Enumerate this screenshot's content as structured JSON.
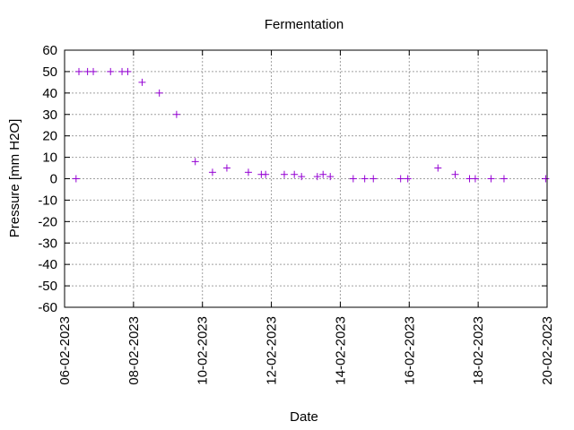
{
  "chart_data": {
    "type": "scatter",
    "title": "Fermentation",
    "xlabel": "Date",
    "ylabel": "Pressure [mm H2O]",
    "xlim": [
      "2023-02-06",
      "2023-02-20"
    ],
    "ylim": [
      -60,
      60
    ],
    "grid": true,
    "point_marker": "+",
    "point_color": "#9400d3",
    "x_ticks": [
      "06-02-2023",
      "08-02-2023",
      "10-02-2023",
      "12-02-2023",
      "14-02-2023",
      "16-02-2023",
      "18-02-2023",
      "20-02-2023"
    ],
    "y_ticks": [
      60,
      50,
      40,
      30,
      20,
      10,
      0,
      -10,
      -20,
      -30,
      -40,
      -50,
      -60
    ],
    "points": [
      {
        "x": "2023-02-06T08:00",
        "y": 0
      },
      {
        "x": "2023-02-06T10:00",
        "y": 50
      },
      {
        "x": "2023-02-06T16:00",
        "y": 50
      },
      {
        "x": "2023-02-06T20:00",
        "y": 50
      },
      {
        "x": "2023-02-07T08:00",
        "y": 50
      },
      {
        "x": "2023-02-07T16:00",
        "y": 50
      },
      {
        "x": "2023-02-07T20:00",
        "y": 50
      },
      {
        "x": "2023-02-08T06:00",
        "y": 45
      },
      {
        "x": "2023-02-08T18:00",
        "y": 40
      },
      {
        "x": "2023-02-09T06:00",
        "y": 30
      },
      {
        "x": "2023-02-09T19:00",
        "y": 8
      },
      {
        "x": "2023-02-10T07:00",
        "y": 3
      },
      {
        "x": "2023-02-10T17:00",
        "y": 5
      },
      {
        "x": "2023-02-11T08:00",
        "y": 3
      },
      {
        "x": "2023-02-11T17:00",
        "y": 2
      },
      {
        "x": "2023-02-11T20:00",
        "y": 2
      },
      {
        "x": "2023-02-12T09:00",
        "y": 2
      },
      {
        "x": "2023-02-12T16:00",
        "y": 2
      },
      {
        "x": "2023-02-12T21:00",
        "y": 1
      },
      {
        "x": "2023-02-13T08:00",
        "y": 1
      },
      {
        "x": "2023-02-13T12:00",
        "y": 2
      },
      {
        "x": "2023-02-13T17:00",
        "y": 1
      },
      {
        "x": "2023-02-14T09:00",
        "y": 0
      },
      {
        "x": "2023-02-14T17:00",
        "y": 0
      },
      {
        "x": "2023-02-14T23:00",
        "y": 0
      },
      {
        "x": "2023-02-15T18:00",
        "y": 0
      },
      {
        "x": "2023-02-15T23:00",
        "y": 0
      },
      {
        "x": "2023-02-16T20:00",
        "y": 5
      },
      {
        "x": "2023-02-17T08:00",
        "y": 2
      },
      {
        "x": "2023-02-17T18:00",
        "y": 0
      },
      {
        "x": "2023-02-17T22:00",
        "y": 0
      },
      {
        "x": "2023-02-18T09:00",
        "y": 0
      },
      {
        "x": "2023-02-18T18:00",
        "y": 0
      },
      {
        "x": "2023-02-19T23:00",
        "y": 0
      }
    ]
  }
}
